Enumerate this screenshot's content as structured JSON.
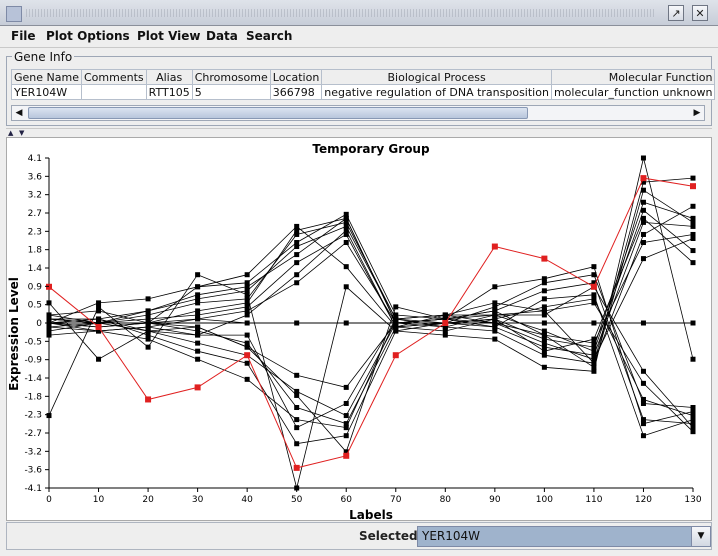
{
  "window": {
    "restore_icon": "restore-icon",
    "close_icon": "close-icon",
    "restore_glyph": "↗",
    "close_glyph": "✕"
  },
  "menu": {
    "items": [
      "File",
      "Plot Options",
      "Plot View",
      "Data",
      "Search"
    ]
  },
  "gene_info": {
    "title": "Gene Info",
    "columns": [
      "Gene Name",
      "Comments",
      "Alias",
      "Chromosome",
      "Location",
      "Biological Process",
      "Molecular Function"
    ],
    "row": [
      "YER104W",
      "",
      "RTT105",
      "5",
      "366798",
      "negative regulation of DNA transposition",
      "molecular_function unknown"
    ]
  },
  "chart_data": {
    "type": "line",
    "title": "Temporary Group",
    "xlabel": "Labels",
    "ylabel": "Expression Level",
    "x": [
      0,
      10,
      20,
      30,
      40,
      50,
      60,
      70,
      80,
      90,
      100,
      110,
      120,
      130
    ],
    "x_ticks": [
      "0",
      "10",
      "20",
      "30",
      "40",
      "50",
      "60",
      "70",
      "80",
      "90",
      "100",
      "110",
      "120",
      "130"
    ],
    "y_ticks": [
      "4.1",
      "3.6",
      "3.2",
      "2.7",
      "2.3",
      "1.8",
      "1.4",
      "0.9",
      "0.5",
      "0",
      "-0.5",
      "-0.9",
      "-1.4",
      "-1.8",
      "-2.3",
      "-2.7",
      "-3.2",
      "-3.6",
      "-4.1"
    ],
    "ylim": [
      -4.1,
      4.1
    ],
    "colors": {
      "series": "#000000",
      "highlight": "#e02020"
    },
    "series": [
      {
        "values": [
          0.0,
          -0.1,
          0.0,
          0.3,
          0.5,
          2.3,
          2.6,
          0.0,
          0.1,
          0.0,
          -0.3,
          -0.5,
          2.0,
          2.2
        ]
      },
      {
        "values": [
          0.1,
          0.1,
          0.3,
          0.6,
          0.8,
          1.9,
          2.4,
          0.1,
          0.0,
          -0.1,
          -0.6,
          -0.8,
          2.5,
          2.4
        ]
      },
      {
        "values": [
          -0.1,
          0.0,
          0.1,
          0.2,
          0.4,
          1.5,
          2.2,
          -0.1,
          -0.2,
          0.1,
          -0.4,
          -0.6,
          3.0,
          2.6
        ]
      },
      {
        "values": [
          0.2,
          0.3,
          0.0,
          0.9,
          1.0,
          2.0,
          2.7,
          0.2,
          0.1,
          0.2,
          -0.2,
          -0.7,
          2.8,
          1.8
        ]
      },
      {
        "values": [
          0.0,
          -0.2,
          -0.1,
          0.1,
          0.3,
          1.0,
          2.0,
          0.0,
          -0.1,
          -0.2,
          -0.8,
          -1.0,
          2.2,
          2.9
        ]
      },
      {
        "values": [
          0.1,
          0.0,
          0.2,
          0.5,
          0.6,
          2.2,
          2.5,
          0.1,
          0.2,
          0.0,
          -0.5,
          -0.9,
          1.6,
          2.1
        ]
      },
      {
        "values": [
          0.0,
          0.1,
          -0.2,
          -0.3,
          0.2,
          1.2,
          2.3,
          -0.1,
          0.0,
          0.1,
          -0.7,
          -0.4,
          2.6,
          1.5
        ]
      },
      {
        "values": [
          -0.2,
          0.0,
          0.3,
          0.7,
          0.9,
          1.7,
          2.6,
          0.0,
          0.1,
          0.3,
          -0.3,
          -1.1,
          3.3,
          2.5
        ]
      },
      {
        "values": [
          0.0,
          -0.1,
          0.0,
          -0.2,
          -0.5,
          -2.1,
          -2.5,
          -0.1,
          0.0,
          0.1,
          0.4,
          0.6,
          -1.9,
          -2.3
        ]
      },
      {
        "values": [
          0.1,
          0.0,
          -0.2,
          -0.5,
          -0.8,
          -1.7,
          -2.3,
          0.0,
          0.1,
          0.3,
          0.8,
          1.0,
          -2.4,
          -2.5
        ]
      },
      {
        "values": [
          -0.1,
          -0.2,
          -0.1,
          -0.3,
          -0.3,
          -2.6,
          -2.0,
          0.1,
          0.2,
          0.2,
          0.3,
          0.5,
          -1.5,
          -2.7
        ]
      },
      {
        "values": [
          0.0,
          0.1,
          -0.3,
          -0.7,
          -1.0,
          -3.0,
          -2.8,
          -0.2,
          0.0,
          0.4,
          1.0,
          1.2,
          -2.0,
          -2.1
        ]
      },
      {
        "values": [
          0.2,
          0.0,
          0.0,
          -0.1,
          -0.6,
          -1.3,
          -1.6,
          0.0,
          0.1,
          -0.1,
          0.6,
          0.7,
          -2.8,
          -2.4
        ]
      },
      {
        "values": [
          -0.3,
          -0.2,
          -0.4,
          -0.9,
          -1.4,
          -2.4,
          -2.6,
          0.1,
          -0.1,
          0.2,
          0.2,
          0.9,
          -1.2,
          -2.6
        ]
      },
      {
        "values": [
          0.1,
          0.0,
          0.0,
          0.1,
          0.0,
          0.0,
          0.0,
          0.0,
          0.0,
          0.0,
          0.0,
          0.0,
          0.0,
          0.0
        ]
      },
      {
        "values": [
          -2.3,
          0.4,
          -0.6,
          1.2,
          0.7,
          -4.1,
          0.9,
          -0.2,
          -0.3,
          -0.4,
          -1.1,
          -1.2,
          4.1,
          -0.9
        ]
      },
      {
        "values": [
          0.5,
          -0.9,
          -0.2,
          -0.1,
          -0.6,
          -1.8,
          -3.2,
          0.4,
          0.1,
          0.9,
          1.1,
          1.4,
          -2.5,
          -2.2
        ]
      },
      {
        "values": [
          0.0,
          0.5,
          0.6,
          0.9,
          1.2,
          2.4,
          1.4,
          -0.1,
          0.2,
          0.5,
          0.3,
          -1.0,
          3.5,
          3.6
        ]
      }
    ],
    "highlight": {
      "name": "YER104W",
      "values": [
        0.9,
        -0.1,
        -1.9,
        -1.6,
        -0.8,
        -3.6,
        -3.3,
        -0.8,
        0.0,
        1.9,
        1.6,
        0.9,
        3.6,
        3.4
      ]
    }
  },
  "status": {
    "selected_label": "Selected:",
    "selected_value": "YER104W"
  }
}
